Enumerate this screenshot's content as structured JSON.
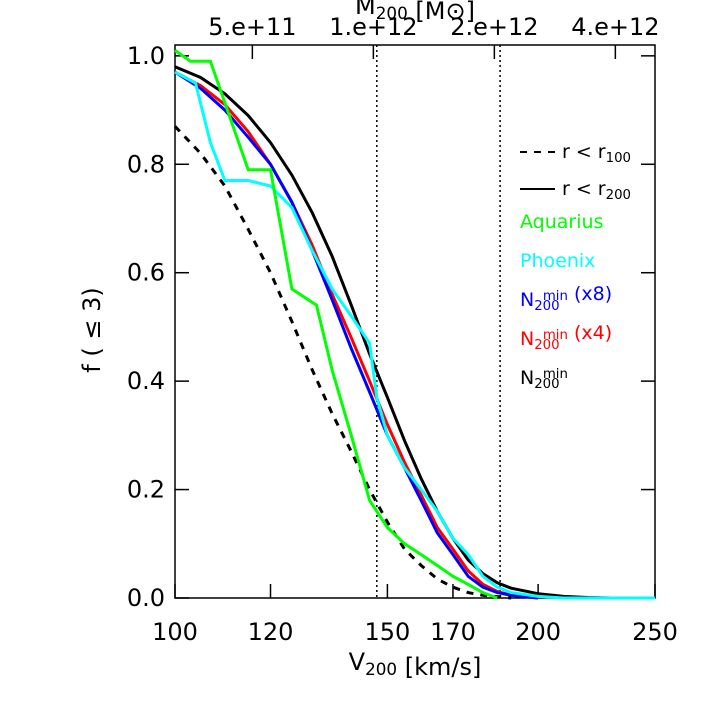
{
  "chart_data": {
    "type": "line",
    "x_label": "V200 [km/s]",
    "y_label": "f ( ≤ 3)",
    "x2_label": "M200 [M⊙]",
    "xlim": [
      100,
      250
    ],
    "xscale": "log",
    "xticks": [
      100,
      120,
      150,
      170,
      200,
      250
    ],
    "x2lim": [
      321000000000,
      5020000000000
    ],
    "x2scale": "log",
    "x2ticks": [
      {
        "value": 500000000000,
        "label": "5.e+11"
      },
      {
        "value": 1000000000000,
        "label": "1.e+12"
      },
      {
        "value": 2000000000000,
        "label": "2.e+12"
      },
      {
        "value": 4000000000000,
        "label": "4.e+12"
      }
    ],
    "ylim": [
      0,
      1.02
    ],
    "yticks": [
      {
        "value": 0,
        "label": "0.0"
      },
      {
        "value": 0.2,
        "label": "0.2"
      },
      {
        "value": 0.4,
        "label": "0.4"
      },
      {
        "value": 0.6,
        "label": "0.6"
      },
      {
        "value": 0.8,
        "label": "0.8"
      },
      {
        "value": 1,
        "label": "1.0"
      }
    ],
    "vlines": [
      147,
      186
    ],
    "linestyle_legend": [
      {
        "label": "r < r100",
        "dash": "dashed"
      },
      {
        "label": "r < r200",
        "dash": "solid"
      }
    ],
    "series": [
      {
        "color": "#000000",
        "dash": "dashed",
        "x": [
          100,
          105,
          110,
          115,
          120,
          125,
          130,
          135,
          140,
          145,
          150,
          155,
          160,
          165,
          170,
          175,
          180,
          190
        ],
        "values": [
          0.87,
          0.82,
          0.76,
          0.68,
          0.6,
          0.51,
          0.42,
          0.34,
          0.27,
          0.2,
          0.14,
          0.09,
          0.06,
          0.035,
          0.02,
          0.01,
          0.005,
          0
        ]
      },
      {
        "name": "N200min",
        "color": "#000000",
        "dash": "solid",
        "x": [
          100,
          105,
          110,
          115,
          120,
          125,
          130,
          135,
          140,
          145,
          150,
          155,
          160,
          165,
          170,
          175,
          180,
          185,
          190,
          200,
          210,
          220,
          230,
          250
        ],
        "values": [
          0.98,
          0.96,
          0.93,
          0.89,
          0.84,
          0.78,
          0.71,
          0.63,
          0.54,
          0.45,
          0.37,
          0.29,
          0.22,
          0.16,
          0.11,
          0.07,
          0.045,
          0.028,
          0.018,
          0.008,
          0.003,
          0.001,
          0,
          0
        ]
      },
      {
        "name": "N200min (x4)",
        "color": "#ff0000",
        "dash": "solid",
        "x": [
          100,
          105,
          110,
          115,
          120,
          125,
          130,
          135,
          140,
          145,
          150,
          155,
          160,
          165,
          170,
          175,
          180,
          185,
          190,
          200
        ],
        "values": [
          0.97,
          0.945,
          0.91,
          0.86,
          0.8,
          0.73,
          0.65,
          0.56,
          0.48,
          0.4,
          0.32,
          0.25,
          0.19,
          0.13,
          0.09,
          0.05,
          0.025,
          0.012,
          0.005,
          0
        ]
      },
      {
        "name": "N200min (x8)",
        "color": "#0000ff",
        "dash": "solid",
        "x": [
          100,
          105,
          110,
          115,
          120,
          125,
          130,
          135,
          140,
          145,
          150,
          155,
          160,
          165,
          170,
          175,
          180,
          185,
          190,
          200
        ],
        "values": [
          0.97,
          0.94,
          0.9,
          0.85,
          0.8,
          0.73,
          0.64,
          0.55,
          0.46,
          0.38,
          0.3,
          0.24,
          0.18,
          0.12,
          0.08,
          0.04,
          0.02,
          0.01,
          0.005,
          0
        ]
      },
      {
        "name": "Phoenix",
        "color": "#00ffff",
        "dash": "solid",
        "x": [
          100,
          104,
          107,
          110,
          115,
          120,
          125,
          130,
          135,
          140,
          145,
          147,
          150,
          155,
          160,
          165,
          170,
          175,
          180,
          185,
          190,
          200,
          210,
          250
        ],
        "values": [
          0.97,
          0.95,
          0.84,
          0.77,
          0.77,
          0.76,
          0.72,
          0.64,
          0.57,
          0.52,
          0.47,
          0.37,
          0.3,
          0.24,
          0.2,
          0.16,
          0.11,
          0.08,
          0.04,
          0.02,
          0.01,
          0.003,
          0,
          0
        ]
      },
      {
        "name": "Aquarius",
        "color": "#00ff00",
        "dash": "solid",
        "x": [
          100,
          103,
          107,
          115,
          120,
          125,
          131,
          135,
          140,
          145,
          150,
          155,
          160,
          165,
          170,
          175,
          180,
          185
        ],
        "values": [
          1.01,
          0.99,
          0.99,
          0.79,
          0.79,
          0.57,
          0.54,
          0.42,
          0.3,
          0.18,
          0.13,
          0.1,
          0.08,
          0.06,
          0.04,
          0.025,
          0.01,
          0
        ]
      }
    ]
  }
}
